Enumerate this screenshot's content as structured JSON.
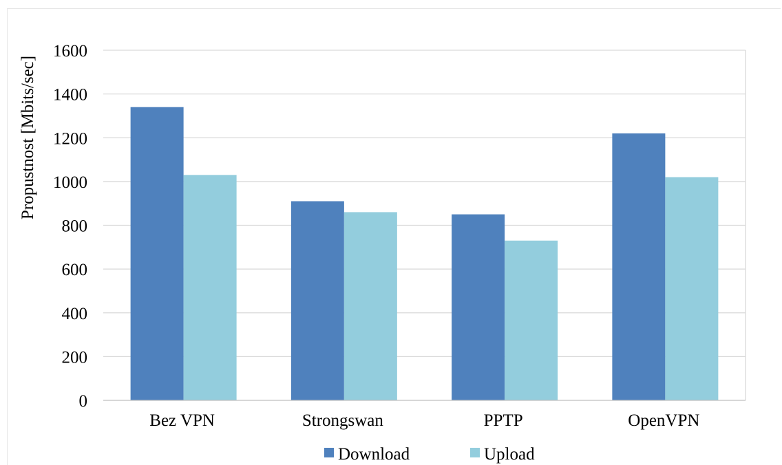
{
  "chart_data": {
    "type": "bar",
    "title": "",
    "xlabel": "",
    "ylabel": "Propustnost [Mbits/sec]",
    "categories": [
      "Bez VPN",
      "Strongswan",
      "PPTP",
      "OpenVPN"
    ],
    "series": [
      {
        "name": "Download",
        "values": [
          1340,
          910,
          850,
          1220
        ],
        "color": "#4f81bd"
      },
      {
        "name": "Upload",
        "values": [
          1030,
          860,
          730,
          1020
        ],
        "color": "#93cddd"
      }
    ],
    "ylim": [
      0,
      1600
    ],
    "yticks": [
      0,
      200,
      400,
      600,
      800,
      1000,
      1200,
      1400,
      1600
    ],
    "grid": true,
    "legend_position": "bottom"
  }
}
